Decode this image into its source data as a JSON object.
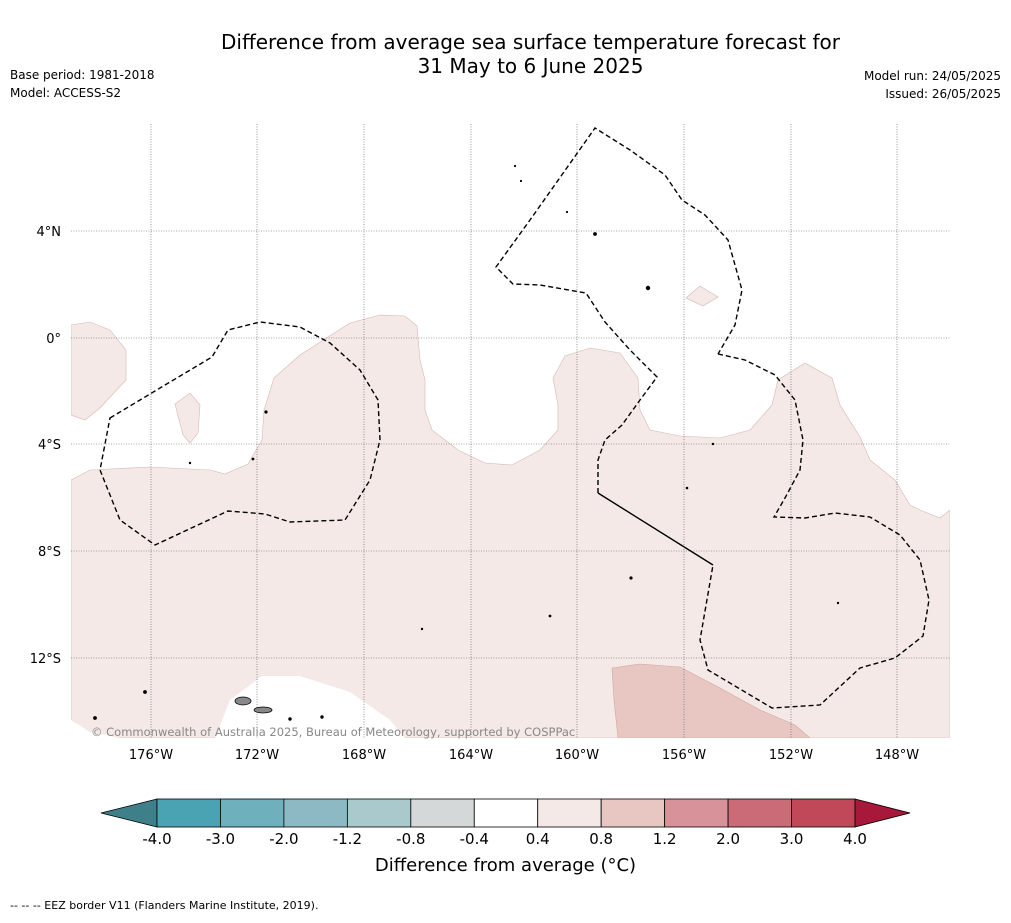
{
  "title_line1": "Difference from average sea surface temperature forecast for",
  "title_line2": "31 May to 6 June 2025",
  "left_meta": {
    "base_period": "Base period: 1981-2018",
    "model": "Model: ACCESS-S2"
  },
  "right_meta": {
    "model_run": "Model run: 24/05/2025",
    "issued": "Issued: 26/05/2025"
  },
  "map": {
    "lat_labels": [
      "4°N",
      "0°",
      "4°S",
      "8°S",
      "12°S"
    ],
    "lon_labels": [
      "176°W",
      "172°W",
      "168°W",
      "164°W",
      "160°W",
      "156°W",
      "152°W",
      "148°W"
    ],
    "copyright": "© Commonwealth of Australia 2025, Bureau of Meteorology, supported by COSPPac",
    "colors": {
      "anomaly_04_08": "#f4e9e7",
      "anomaly_08_12": "#e8c7c3",
      "land": "#888888"
    }
  },
  "colorbar": {
    "tick_labels": [
      "-4.0",
      "-3.0",
      "-2.0",
      "-1.2",
      "-0.8",
      "-0.4",
      "0.4",
      "0.8",
      "1.2",
      "2.0",
      "3.0",
      "4.0"
    ],
    "colors": [
      "#3e7f89",
      "#4aa3b2",
      "#6fb0bd",
      "#8db9c4",
      "#aac9cd",
      "#d5d8d8",
      "#ffffff",
      "#f4e9e7",
      "#e8c7c3",
      "#d8939a",
      "#cc6b78",
      "#c04858",
      "#a8183a"
    ],
    "label": "Difference from average (°C)"
  },
  "footer": "--  --  -- EEZ border V11 (Flanders Marine Institute, 2019)."
}
